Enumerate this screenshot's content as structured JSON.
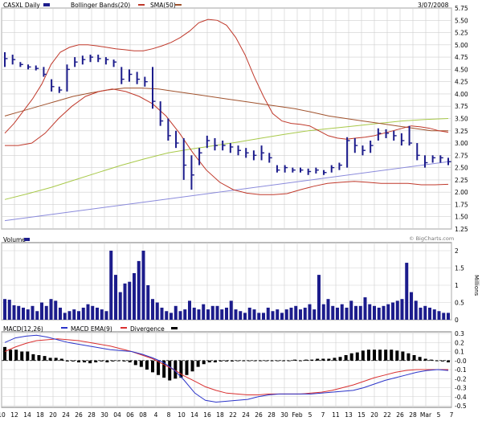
{
  "chart_data": [
    {
      "panel": "price",
      "type": "line",
      "header": {
        "symbol_label": "CASXL Daily",
        "bollinger_label": "Bollinger Bands(20)",
        "sma_label": "SMA(50)",
        "date_label": "3/07/2008"
      },
      "colors": {
        "price_bars": "#1c1c8c",
        "bollinger": "#c0392b",
        "sma50": "#a0522d",
        "long_sma": "#a8c94a",
        "trendline": "#8a8adb"
      },
      "ylim": [
        1.25,
        5.75
      ],
      "y_ticks": [
        "1.25",
        "1.50",
        "1.75",
        "2.00",
        "2.25",
        "2.50",
        "2.75",
        "3.00",
        "3.25",
        "3.50",
        "3.75",
        "4.00",
        "4.25",
        "4.50",
        "4.75",
        "5.00",
        "5.25",
        "5.50",
        "5.75"
      ],
      "grid": true,
      "x_ticks": [
        "10",
        "12",
        "14",
        "18",
        "20",
        "24",
        "26",
        "28",
        "30",
        "04",
        "06",
        "08",
        "4",
        "8",
        "10",
        "14",
        "16",
        "18",
        "22",
        "24",
        "26",
        "28",
        "30",
        "Feb",
        "5",
        "7",
        "11",
        "13",
        "15",
        "20",
        "22",
        "26",
        "28",
        "Mar",
        "5",
        "7"
      ],
      "ohlc": [
        {
          "h": 4.85,
          "l": 4.55,
          "c": 4.72
        },
        {
          "h": 4.8,
          "l": 4.6,
          "c": 4.7
        },
        {
          "h": 4.65,
          "l": 4.55,
          "c": 4.6
        },
        {
          "h": 4.6,
          "l": 4.5,
          "c": 4.55
        },
        {
          "h": 4.58,
          "l": 4.48,
          "c": 4.52
        },
        {
          "h": 4.55,
          "l": 4.35,
          "c": 4.4
        },
        {
          "h": 4.3,
          "l": 4.05,
          "c": 4.15
        },
        {
          "h": 4.15,
          "l": 4.02,
          "c": 4.08
        },
        {
          "h": 4.6,
          "l": 4.05,
          "c": 4.5
        },
        {
          "h": 4.75,
          "l": 4.55,
          "c": 4.65
        },
        {
          "h": 4.78,
          "l": 4.6,
          "c": 4.7
        },
        {
          "h": 4.8,
          "l": 4.65,
          "c": 4.75
        },
        {
          "h": 4.8,
          "l": 4.65,
          "c": 4.72
        },
        {
          "h": 4.75,
          "l": 4.6,
          "c": 4.7
        },
        {
          "h": 4.7,
          "l": 4.55,
          "c": 4.65
        },
        {
          "h": 4.55,
          "l": 4.2,
          "c": 4.3
        },
        {
          "h": 4.5,
          "l": 4.25,
          "c": 4.4
        },
        {
          "h": 4.45,
          "l": 4.2,
          "c": 4.3
        },
        {
          "h": 4.35,
          "l": 4.15,
          "c": 4.25
        },
        {
          "h": 4.55,
          "l": 3.7,
          "c": 3.85
        },
        {
          "h": 3.85,
          "l": 3.35,
          "c": 3.45
        },
        {
          "h": 3.5,
          "l": 3.05,
          "c": 3.15
        },
        {
          "h": 3.25,
          "l": 2.9,
          "c": 3.0
        },
        {
          "h": 3.1,
          "l": 2.25,
          "c": 2.55
        },
        {
          "h": 2.75,
          "l": 2.05,
          "c": 2.35
        },
        {
          "h": 2.9,
          "l": 2.55,
          "c": 2.8
        },
        {
          "h": 3.15,
          "l": 2.9,
          "c": 3.05
        },
        {
          "h": 3.1,
          "l": 2.85,
          "c": 2.95
        },
        {
          "h": 3.05,
          "l": 2.85,
          "c": 2.95
        },
        {
          "h": 3.0,
          "l": 2.8,
          "c": 2.92
        },
        {
          "h": 2.95,
          "l": 2.75,
          "c": 2.85
        },
        {
          "h": 2.9,
          "l": 2.7,
          "c": 2.8
        },
        {
          "h": 2.85,
          "l": 2.65,
          "c": 2.75
        },
        {
          "h": 2.95,
          "l": 2.65,
          "c": 2.8
        },
        {
          "h": 2.8,
          "l": 2.6,
          "c": 2.7
        },
        {
          "h": 2.55,
          "l": 2.4,
          "c": 2.45
        },
        {
          "h": 2.55,
          "l": 2.4,
          "c": 2.5
        },
        {
          "h": 2.5,
          "l": 2.4,
          "c": 2.45
        },
        {
          "h": 2.5,
          "l": 2.4,
          "c": 2.45
        },
        {
          "h": 2.48,
          "l": 2.35,
          "c": 2.42
        },
        {
          "h": 2.5,
          "l": 2.38,
          "c": 2.45
        },
        {
          "h": 2.45,
          "l": 2.35,
          "c": 2.4
        },
        {
          "h": 2.55,
          "l": 2.4,
          "c": 2.5
        },
        {
          "h": 2.6,
          "l": 2.45,
          "c": 2.55
        },
        {
          "h": 3.12,
          "l": 2.5,
          "c": 3.05
        },
        {
          "h": 3.1,
          "l": 2.8,
          "c": 2.95
        },
        {
          "h": 2.95,
          "l": 2.75,
          "c": 2.85
        },
        {
          "h": 3.05,
          "l": 2.8,
          "c": 2.95
        },
        {
          "h": 3.3,
          "l": 3.05,
          "c": 3.2
        },
        {
          "h": 3.28,
          "l": 3.1,
          "c": 3.2
        },
        {
          "h": 3.25,
          "l": 3.05,
          "c": 3.15
        },
        {
          "h": 3.2,
          "l": 2.95,
          "c": 3.05
        },
        {
          "h": 3.35,
          "l": 2.95,
          "c": 3.0
        },
        {
          "h": 3.0,
          "l": 2.65,
          "c": 2.75
        },
        {
          "h": 2.75,
          "l": 2.5,
          "c": 2.6
        },
        {
          "h": 2.75,
          "l": 2.6,
          "c": 2.7
        },
        {
          "h": 2.75,
          "l": 2.6,
          "c": 2.7
        },
        {
          "h": 2.7,
          "l": 2.55,
          "c": 2.62
        }
      ],
      "bb_upper": [
        3.2,
        3.4,
        3.65,
        3.9,
        4.2,
        4.6,
        4.85,
        4.95,
        5.0,
        5.0,
        4.98,
        4.95,
        4.92,
        4.9,
        4.88,
        4.88,
        4.92,
        4.98,
        5.05,
        5.15,
        5.28,
        5.45,
        5.52,
        5.5,
        5.4,
        5.15,
        4.8,
        4.35,
        3.95,
        3.6,
        3.45,
        3.4,
        3.38,
        3.35,
        3.25,
        3.15,
        3.1,
        3.08,
        3.1,
        3.12,
        3.15,
        3.2,
        3.25,
        3.3,
        3.35,
        3.33,
        3.3,
        3.25,
        3.22
      ],
      "bb_lower": [
        2.95,
        2.95,
        3.0,
        3.2,
        3.5,
        3.75,
        3.95,
        4.05,
        4.1,
        4.05,
        3.95,
        3.8,
        3.55,
        3.2,
        2.8,
        2.45,
        2.2,
        2.05,
        1.98,
        1.95,
        1.95,
        1.97,
        2.05,
        2.12,
        2.18,
        2.2,
        2.22,
        2.2,
        2.18,
        2.18,
        2.18,
        2.15,
        2.15,
        2.16
      ],
      "sma50": [
        3.55,
        3.65,
        3.75,
        3.85,
        3.95,
        4.02,
        4.08,
        4.12,
        4.12,
        4.1,
        4.05,
        4.0,
        3.95,
        3.9,
        3.85,
        3.8,
        3.75,
        3.7,
        3.63,
        3.55,
        3.5,
        3.45,
        3.4,
        3.35,
        3.3,
        3.25,
        3.25
      ],
      "long_sma": [
        1.85,
        1.97,
        2.1,
        2.25,
        2.4,
        2.55,
        2.68,
        2.8,
        2.88,
        2.95,
        3.02,
        3.1,
        3.18,
        3.25,
        3.3,
        3.35,
        3.4,
        3.45,
        3.48,
        3.5
      ],
      "trendline": [
        1.42,
        2.62
      ]
    },
    {
      "panel": "volume",
      "type": "bar",
      "title": "Volume",
      "unit_label": "Millions",
      "watermark": "© BigCharts.com",
      "ylim": [
        0,
        2
      ],
      "y_ticks": [
        "0",
        "0.5",
        "1",
        "1.5",
        "2"
      ],
      "values": [
        0.6,
        0.58,
        0.42,
        0.4,
        0.35,
        0.3,
        0.4,
        0.25,
        0.5,
        0.4,
        0.6,
        0.55,
        0.35,
        0.2,
        0.25,
        0.3,
        0.25,
        0.35,
        0.45,
        0.4,
        0.35,
        0.3,
        0.25,
        2.0,
        1.3,
        0.8,
        1.05,
        1.1,
        1.35,
        1.7,
        2.0,
        1.0,
        0.6,
        0.5,
        0.35,
        0.25,
        0.2,
        0.4,
        0.25,
        0.3,
        0.55,
        0.35,
        0.3,
        0.45,
        0.3,
        0.4,
        0.4,
        0.3,
        0.35,
        0.55,
        0.3,
        0.25,
        0.2,
        0.35,
        0.3,
        0.2,
        0.2,
        0.35,
        0.25,
        0.3,
        0.2,
        0.3,
        0.35,
        0.4,
        0.3,
        0.35,
        0.45,
        0.3,
        1.3,
        0.45,
        0.6,
        0.4,
        0.35,
        0.45,
        0.35,
        0.55,
        0.4,
        0.4,
        0.65,
        0.45,
        0.4,
        0.35,
        0.4,
        0.45,
        0.5,
        0.55,
        0.6,
        1.65,
        0.8,
        0.55,
        0.35,
        0.4,
        0.35,
        0.3,
        0.25,
        0.2,
        0.2
      ]
    },
    {
      "panel": "macd",
      "type": "line",
      "legend": {
        "macd_label": "MACD(12,26)",
        "ema_label": "MACD EMA(9)",
        "divergence_label": "Divergence"
      },
      "ylim": [
        -0.5,
        0.3
      ],
      "y_ticks": [
        "0.3",
        "0.2",
        "0.1",
        "-0.0",
        "-0.1",
        "-0.2",
        "-0.3",
        "-0.4",
        "-0.5"
      ],
      "macd": [
        0.2,
        0.25,
        0.27,
        0.28,
        0.26,
        0.23,
        0.2,
        0.18,
        0.16,
        0.14,
        0.12,
        0.11,
        0.1,
        0.07,
        0.03,
        -0.02,
        -0.1,
        -0.22,
        -0.36,
        -0.44,
        -0.46,
        -0.45,
        -0.44,
        -0.43,
        -0.4,
        -0.38,
        -0.37,
        -0.37,
        -0.37,
        -0.37,
        -0.36,
        -0.35,
        -0.34,
        -0.33,
        -0.3,
        -0.26,
        -0.22,
        -0.19,
        -0.16,
        -0.13,
        -0.11,
        -0.1,
        -0.11
      ],
      "ema": [
        0.1,
        0.15,
        0.19,
        0.22,
        0.23,
        0.24,
        0.23,
        0.22,
        0.2,
        0.18,
        0.16,
        0.13,
        0.1,
        0.06,
        0.02,
        -0.04,
        -0.1,
        -0.17,
        -0.23,
        -0.29,
        -0.33,
        -0.36,
        -0.37,
        -0.38,
        -0.38,
        -0.37,
        -0.37,
        -0.37,
        -0.37,
        -0.36,
        -0.35,
        -0.33,
        -0.3,
        -0.27,
        -0.23,
        -0.19,
        -0.16,
        -0.13,
        -0.11,
        -0.1,
        -0.1,
        -0.1,
        -0.1
      ],
      "divergence": [
        0.15,
        0.12,
        0.12,
        0.1,
        0.1,
        0.07,
        0.06,
        0.05,
        0.03,
        0.03,
        0.02,
        -0.01,
        -0.01,
        -0.02,
        -0.02,
        -0.03,
        -0.02,
        -0.01,
        -0.02,
        -0.01,
        0.0,
        -0.01,
        -0.02,
        -0.05,
        -0.07,
        -0.1,
        -0.13,
        -0.16,
        -0.19,
        -0.22,
        -0.2,
        -0.19,
        -0.16,
        -0.12,
        -0.07,
        -0.04,
        -0.02,
        -0.02,
        -0.01,
        -0.01,
        -0.01,
        0.0,
        0.0,
        0.0,
        0.0,
        0.0,
        0.0,
        0.0,
        0.0,
        0.0,
        0.0,
        0.01,
        0.0,
        0.01,
        0.01,
        0.02,
        0.02,
        0.02,
        0.03,
        0.04,
        0.06,
        0.08,
        0.09,
        0.11,
        0.12,
        0.12,
        0.12,
        0.12,
        0.12,
        0.11,
        0.1,
        0.08,
        0.06,
        0.04,
        0.02,
        0.01,
        0.0,
        -0.01,
        -0.02
      ]
    }
  ]
}
